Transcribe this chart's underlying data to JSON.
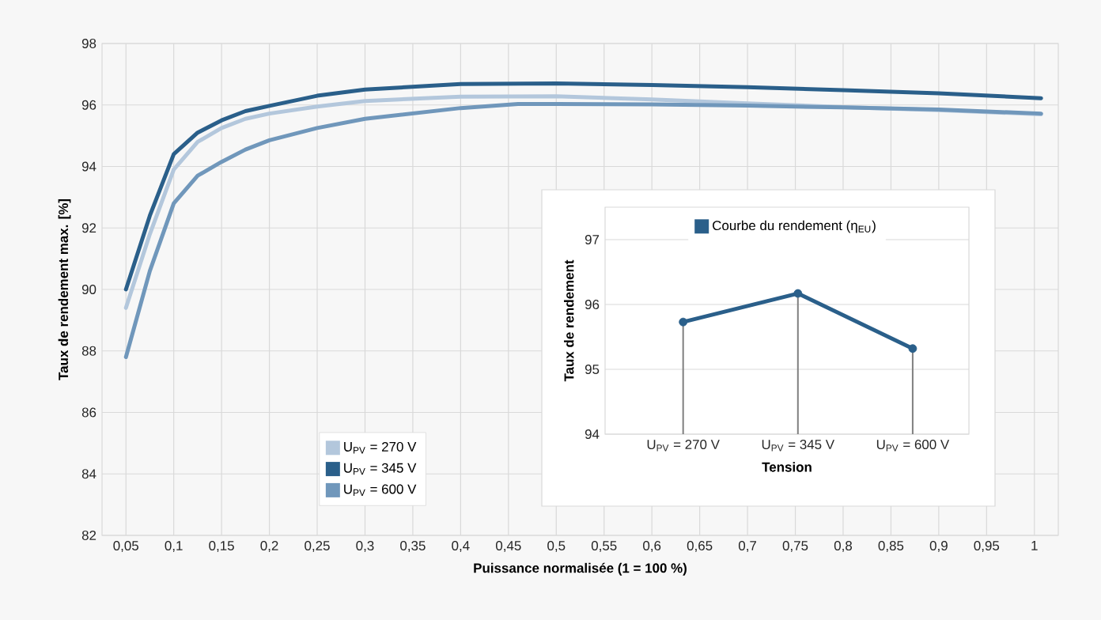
{
  "chart_data": [
    {
      "type": "line",
      "xlabel": "Puissance normalisée (1 = 100 %)",
      "ylabel": "Taux de rendement max. [%]",
      "xlim": [
        0.025,
        1.025
      ],
      "ylim": [
        82,
        98
      ],
      "xticks": [
        {
          "value": 0.05,
          "label": "0,05"
        },
        {
          "value": 0.1,
          "label": "0,1"
        },
        {
          "value": 0.15,
          "label": "0,15"
        },
        {
          "value": 0.2,
          "label": "0,2"
        },
        {
          "value": 0.25,
          "label": "0,25"
        },
        {
          "value": 0.3,
          "label": "0,3"
        },
        {
          "value": 0.35,
          "label": "0,35"
        },
        {
          "value": 0.4,
          "label": "0,4"
        },
        {
          "value": 0.45,
          "label": "0,45"
        },
        {
          "value": 0.5,
          "label": "0,5"
        },
        {
          "value": 0.55,
          "label": "0,55"
        },
        {
          "value": 0.6,
          "label": "0,6"
        },
        {
          "value": 0.65,
          "label": "0,65"
        },
        {
          "value": 0.7,
          "label": "0,7"
        },
        {
          "value": 0.75,
          "label": "0,75"
        },
        {
          "value": 0.8,
          "label": "0,8"
        },
        {
          "value": 0.85,
          "label": "0,85"
        },
        {
          "value": 0.9,
          "label": "0,9"
        },
        {
          "value": 0.95,
          "label": "0,95"
        },
        {
          "value": 1,
          "label": "1"
        }
      ],
      "yticks": [
        82,
        84,
        86,
        88,
        90,
        92,
        94,
        96,
        98
      ],
      "grid": true,
      "legend": "bottom left",
      "marker": "none",
      "line_style": "solid",
      "series": [
        {
          "name": "U$_{PV}$ = 270 V",
          "color": "#b3c7dc",
          "x": [
            0.05,
            0.075,
            0.1,
            0.125,
            0.15,
            0.175,
            0.2,
            0.25,
            0.3,
            0.4,
            0.5,
            0.6,
            0.7,
            0.8,
            0.9,
            1.007
          ],
          "values": [
            89.4,
            91.8,
            93.9,
            94.8,
            95.25,
            95.55,
            95.72,
            95.95,
            96.13,
            96.27,
            96.28,
            96.18,
            96.05,
            95.93,
            95.83,
            95.7
          ]
        },
        {
          "name": "U$_{PV}$ = 345 V",
          "color": "#2a5f8a",
          "x": [
            0.05,
            0.075,
            0.1,
            0.125,
            0.15,
            0.175,
            0.2,
            0.25,
            0.3,
            0.4,
            0.5,
            0.6,
            0.7,
            0.8,
            0.9,
            1.007
          ],
          "values": [
            90.0,
            92.4,
            94.4,
            95.1,
            95.5,
            95.8,
            95.97,
            96.3,
            96.5,
            96.68,
            96.7,
            96.65,
            96.58,
            96.48,
            96.38,
            96.22
          ]
        },
        {
          "name": "U$_{PV}$ = 600 V",
          "color": "#7097bb",
          "x": [
            0.05,
            0.075,
            0.1,
            0.125,
            0.15,
            0.175,
            0.2,
            0.25,
            0.3,
            0.4,
            0.46,
            0.5,
            0.6,
            0.7,
            0.8,
            0.9,
            1.007
          ],
          "values": [
            87.8,
            90.6,
            92.8,
            93.7,
            94.15,
            94.55,
            94.85,
            95.25,
            95.55,
            95.9,
            96.03,
            96.03,
            96.02,
            95.98,
            95.92,
            95.85,
            95.72
          ]
        }
      ]
    },
    {
      "type": "lollipop",
      "xlabel": "Tension",
      "ylabel": "Taux de rendement",
      "categories": [
        "U$_{PV}$ = 270 V",
        "U$_{PV}$ = 345 V",
        "U$_{PV}$ = 600 V"
      ],
      "ylim": [
        94,
        97.5
      ],
      "yticks": [
        94,
        95,
        96,
        97
      ],
      "grid": "y",
      "legend": "top",
      "series": [
        {
          "type": "lollipop",
          "color": "#2a5f8a",
          "marker": "circle",
          "values": [
            95.73,
            96.17,
            95.32
          ]
        },
        {
          "type": "line",
          "name": "Courbe du rendement (η$_{EU}$)",
          "color": "#2a5f8a",
          "values": [
            95.73,
            96.17,
            95.32
          ]
        }
      ]
    }
  ]
}
